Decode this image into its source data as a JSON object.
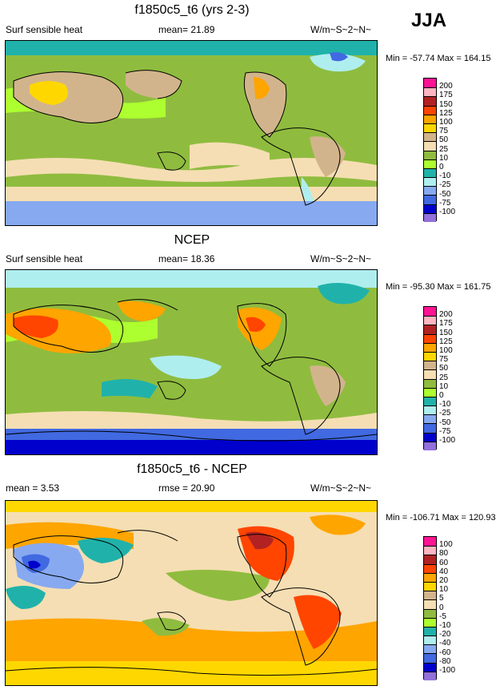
{
  "season": "JJA",
  "panels": [
    {
      "title": "f1850c5_t6 (yrs 2-3)",
      "left_text": "Surf sensible heat",
      "mid_text": "mean=  21.89",
      "units": "W/m~S~2~N~",
      "minmax": "Min = -57.74 Max = 164.15",
      "colorbar": {
        "labels": [
          "200",
          "175",
          "150",
          "125",
          "100",
          "75",
          "50",
          "25",
          "10",
          "0",
          "-10",
          "-25",
          "-50",
          "-75",
          "-100"
        ],
        "colors": [
          "#ff1493",
          "#ffb6c1",
          "#b22222",
          "#ff4500",
          "#ffa500",
          "#ffd700",
          "#d2b48c",
          "#f5deb3",
          "#8fbc3f",
          "#adff2f",
          "#20b2aa",
          "#afeeee",
          "#87a9f0",
          "#4169e1",
          "#0000cd",
          "#9370db"
        ]
      }
    },
    {
      "title": "NCEP",
      "left_text": "Surf sensible heat",
      "mid_text": "mean=  18.36",
      "units": "W/m~S~2~N~",
      "minmax": "Min = -95.30 Max = 161.75",
      "colorbar": {
        "labels": [
          "200",
          "175",
          "150",
          "125",
          "100",
          "75",
          "50",
          "25",
          "10",
          "0",
          "-10",
          "-25",
          "-50",
          "-75",
          "-100"
        ],
        "colors": [
          "#ff1493",
          "#ffb6c1",
          "#b22222",
          "#ff4500",
          "#ffa500",
          "#ffd700",
          "#d2b48c",
          "#f5deb3",
          "#8fbc3f",
          "#adff2f",
          "#20b2aa",
          "#afeeee",
          "#87a9f0",
          "#4169e1",
          "#0000cd",
          "#9370db"
        ]
      }
    },
    {
      "title": "f1850c5_t6 - NCEP",
      "left_text": "mean =   3.53",
      "mid_text": "rmse =  20.90",
      "units": "W/m~S~2~N~",
      "minmax": "Min = -106.71 Max = 120.93",
      "colorbar": {
        "labels": [
          "100",
          "80",
          "60",
          "40",
          "20",
          "10",
          "5",
          "0",
          "-5",
          "-10",
          "-20",
          "-40",
          "-60",
          "-80",
          "-100"
        ],
        "colors": [
          "#ff1493",
          "#ffb6c1",
          "#b22222",
          "#ff4500",
          "#ffa500",
          "#ffd700",
          "#d2b48c",
          "#f5deb3",
          "#8fbc3f",
          "#adff2f",
          "#20b2aa",
          "#afeeee",
          "#87a9f0",
          "#4169e1",
          "#0000cd",
          "#9370db"
        ]
      }
    }
  ],
  "chart_data": [
    {
      "type": "heatmap",
      "title": "f1850c5_t6 (yrs 2-3)",
      "variable": "Surf sensible heat",
      "season": "JJA",
      "mean": 21.89,
      "min": -57.74,
      "max": 164.15,
      "units": "W/m~S~2~N~",
      "contour_levels": [
        -100,
        -75,
        -50,
        -25,
        -10,
        0,
        10,
        25,
        50,
        75,
        100,
        125,
        150,
        175,
        200
      ]
    },
    {
      "type": "heatmap",
      "title": "NCEP",
      "variable": "Surf sensible heat",
      "season": "JJA",
      "mean": 18.36,
      "min": -95.3,
      "max": 161.75,
      "units": "W/m~S~2~N~",
      "contour_levels": [
        -100,
        -75,
        -50,
        -25,
        -10,
        0,
        10,
        25,
        50,
        75,
        100,
        125,
        150,
        175,
        200
      ]
    },
    {
      "type": "heatmap",
      "title": "f1850c5_t6 - NCEP",
      "season": "JJA",
      "mean": 3.53,
      "rmse": 20.9,
      "min": -106.71,
      "max": 120.93,
      "units": "W/m~S~2~N~",
      "contour_levels": [
        -100,
        -80,
        -60,
        -40,
        -20,
        -10,
        -5,
        0,
        5,
        10,
        20,
        40,
        60,
        80,
        100
      ]
    }
  ]
}
